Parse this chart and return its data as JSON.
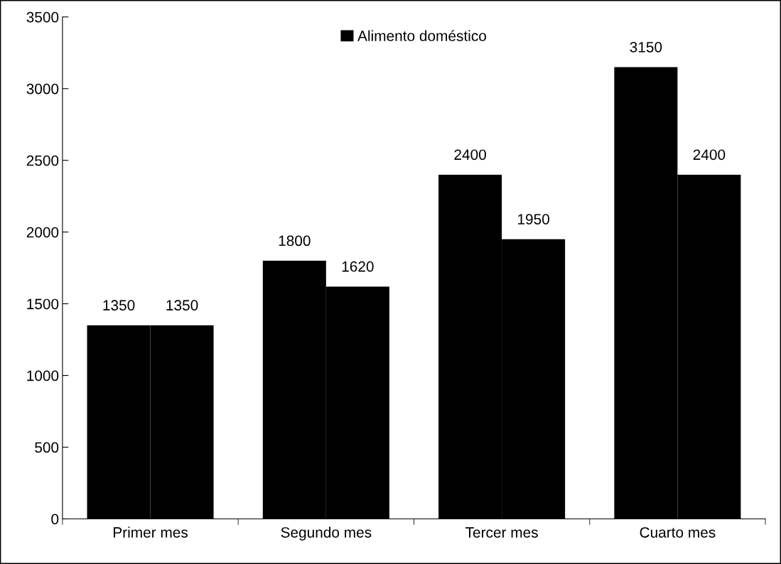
{
  "chart_data": {
    "type": "bar",
    "categories": [
      "Primer mes",
      "Segundo mes",
      "Tercer mes",
      "Cuarto mes"
    ],
    "series": [
      {
        "color": "#000000",
        "values": [
          1350,
          1800,
          2400,
          3150
        ]
      },
      {
        "name": "Alimento doméstico",
        "color": "#000000",
        "values": [
          1350,
          1620,
          1950,
          2400
        ]
      }
    ],
    "ylim": [
      0,
      3500
    ],
    "yticks": [
      0,
      500,
      1000,
      1500,
      2000,
      2500,
      3000,
      3500
    ],
    "data_labels": true,
    "grid": false,
    "legend": "top"
  }
}
